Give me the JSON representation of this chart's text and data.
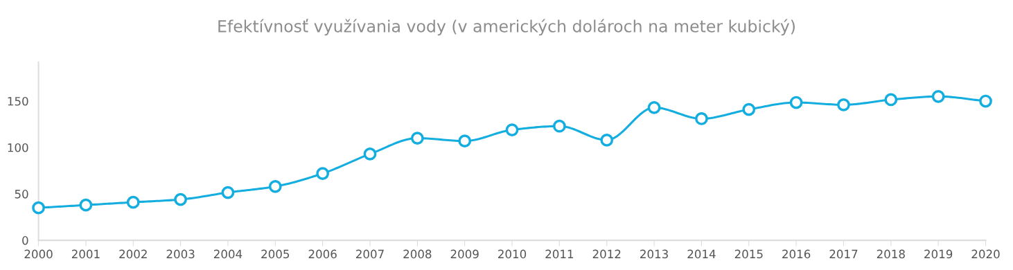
{
  "chart_data": {
    "type": "line",
    "title": "Efektívnosť využívania vody (v amerických dolároch na meter kubický)",
    "x": [
      2000,
      2001,
      2002,
      2003,
      2004,
      2005,
      2006,
      2007,
      2008,
      2009,
      2010,
      2011,
      2012,
      2013,
      2014,
      2015,
      2016,
      2017,
      2018,
      2019,
      2020
    ],
    "series": [
      {
        "color": "#14addf",
        "values": [
          35,
          38,
          41,
          44,
          51.5,
          58,
          72,
          93,
          110,
          107,
          119,
          123,
          108,
          143,
          131,
          141,
          148.5,
          146,
          151.5,
          155,
          150
        ]
      }
    ],
    "xlim": [
      2000,
      2020
    ],
    "xticks": [
      2000,
      2001,
      2002,
      2003,
      2004,
      2005,
      2006,
      2007,
      2008,
      2009,
      2010,
      2011,
      2012,
      2013,
      2014,
      2015,
      2016,
      2017,
      2018,
      2019,
      2020
    ],
    "ylim": [
      0,
      192
    ],
    "yticks": [
      0,
      50,
      100,
      150
    ],
    "grid": false,
    "legend": false,
    "marker": "circle",
    "line_style": "solid"
  }
}
